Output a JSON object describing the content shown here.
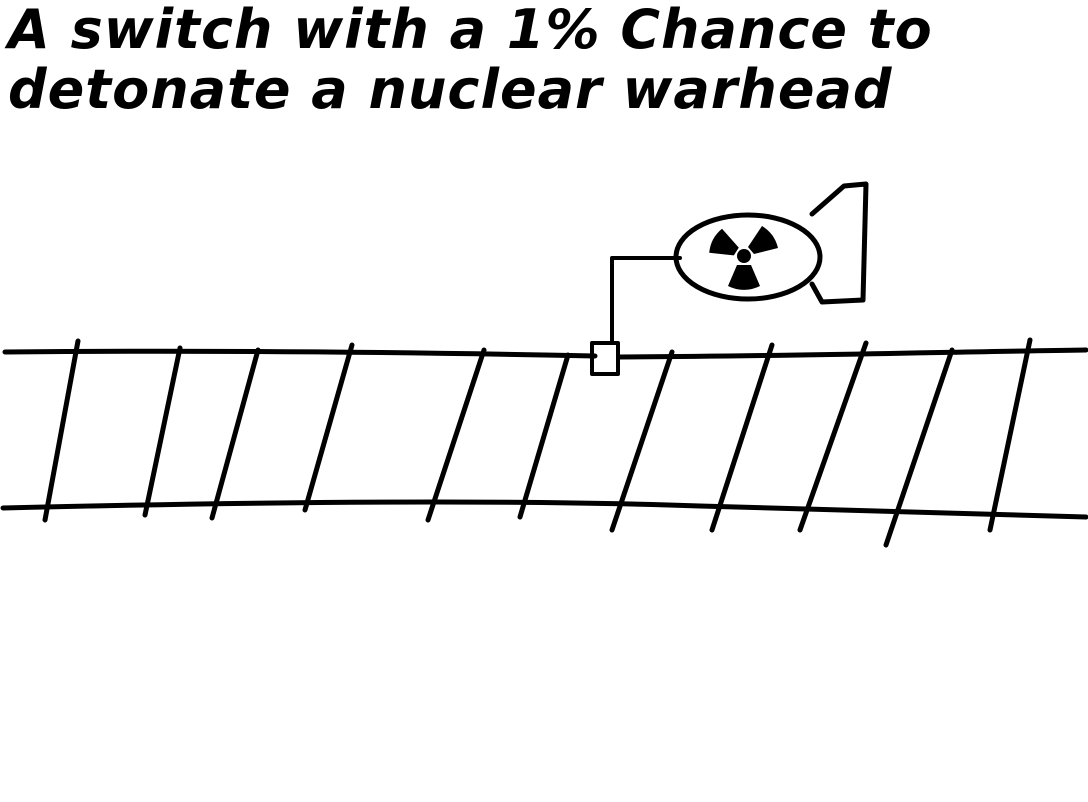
{
  "caption": {
    "text": "A switch with a 1% Chance to detonate a nuclear warhead"
  },
  "icons": {
    "warhead": "nuclear-warhead-icon",
    "radiation": "radiation-symbol-icon",
    "switch": "track-switch-icon"
  },
  "colors": {
    "ink": "#000000",
    "paper": "#ffffff"
  }
}
